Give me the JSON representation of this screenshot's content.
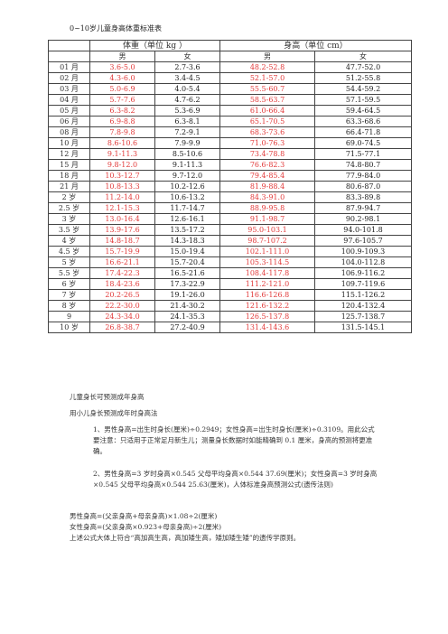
{
  "title": "0~10岁儿童身高体重标准表",
  "table": {
    "group_weight": "体重（单位 kg ）",
    "group_height": "身高（单位 cm）",
    "boy": "男",
    "girl": "女",
    "rows": [
      {
        "age": "01 月",
        "wb": "3.6-5.0",
        "wg": "2.7-3.6",
        "hb": "48.2-52.8",
        "hg": "47.7-52.0"
      },
      {
        "age": "02 月",
        "wb": "4.3-6.0",
        "wg": "3.4-4.5",
        "hb": "52.1-57.0",
        "hg": "51.2-55.8"
      },
      {
        "age": "03 月",
        "wb": "5.0-6.9",
        "wg": "4.0-5.4",
        "hb": "55.5-60.7",
        "hg": "54.4-59.2"
      },
      {
        "age": "04 月",
        "wb": "5.7-7.6",
        "wg": "4.7-6.2",
        "hb": "58.5-63.7",
        "hg": "57.1-59.5"
      },
      {
        "age": "05 月",
        "wb": "6.3-8.2",
        "wg": "5.3-6.9",
        "hb": "61.0-66.4",
        "hg": "59.4-64.5"
      },
      {
        "age": "06 月",
        "wb": "6.9-8.8",
        "wg": "6.3-8.1",
        "hb": "65.1-70.5",
        "hg": "63.3-68.6"
      },
      {
        "age": "08 月",
        "wb": "7.8-9.8",
        "wg": "7.2-9.1",
        "hb": "68.3-73.6",
        "hg": "66.4-71.8"
      },
      {
        "age": "10 月",
        "wb": "8.6-10.6",
        "wg": "7.9-9.9",
        "hb": "71.0-76.3",
        "hg": "69.0-74.5"
      },
      {
        "age": "12 月",
        "wb": "9.1-11.3",
        "wg": "8.5-10.6",
        "hb": "73.4-78.8",
        "hg": "71.5-77.1"
      },
      {
        "age": "15 月",
        "wb": "9.8-12.0",
        "wg": "9.1-11.3",
        "hb": "76.6-82.3",
        "hg": "74.8-80.7"
      },
      {
        "age": "18 月",
        "wb": "10.3-12.7",
        "wg": "9.7-12.0",
        "hb": "79.4-85.4",
        "hg": "77.9-84.0"
      },
      {
        "age": "21 月",
        "wb": "10.8-13.3",
        "wg": "10.2-12.6",
        "hb": "81.9-88.4",
        "hg": "80.6-87.0"
      },
      {
        "age": "2 岁",
        "wb": "11.2-14.0",
        "wg": "10.6-13.2",
        "hb": "84.3-91.0",
        "hg": "83.3-89.8"
      },
      {
        "age": "2.5 岁",
        "wb": "12.1-15.3",
        "wg": "11.7-14.7",
        "hb": "88.9-95.8",
        "hg": "87.9-94.7"
      },
      {
        "age": "3 岁",
        "wb": "13.0-16.4",
        "wg": "12.6-16.1",
        "hb": "91.1-98.7",
        "hg": "90.2-98.1"
      },
      {
        "age": "3.5 岁",
        "wb": "13.9-17.6",
        "wg": "13.5-17.2",
        "hb": "95.0-103.1",
        "hg": "94.0-101.8"
      },
      {
        "age": "4 岁",
        "wb": "14.8-18.7",
        "wg": "14.3-18.3",
        "hb": "98.7-107.2",
        "hg": "97.6-105.7"
      },
      {
        "age": "4.5 岁",
        "wb": "15.7-19.9",
        "wg": "15.0-19.4",
        "hb": "102.1-111.0",
        "hg": "100.9-109.3"
      },
      {
        "age": "5 岁",
        "wb": "16.6-21.1",
        "wg": "15.7-20.4",
        "hb": "105.3-114.5",
        "hg": "104.0-112.8"
      },
      {
        "age": "5.5 岁",
        "wb": "17.4-22.3",
        "wg": "16.5-21.6",
        "hb": "108.4-117.8",
        "hg": "106.9-116.2"
      },
      {
        "age": "6 岁",
        "wb": "18.4-23.6",
        "wg": "17.3-22.9",
        "hb": "111.2-121.0",
        "hg": "109.7-119.6"
      },
      {
        "age": "7 岁",
        "wb": "20.2-26.5",
        "wg": "19.1-26.0",
        "hb": "116.6-126.8",
        "hg": "115.1-126.2"
      },
      {
        "age": "8 岁",
        "wb": "22.2-30.0",
        "wg": "21.4-30.2",
        "hb": "121.6-132.2",
        "hg": "120.4-132.4"
      },
      {
        "age": "9",
        "wb": "24.3-34.0",
        "wg": "24.1-35.3",
        "hb": "126.5-137.8",
        "hg": "125.7-138.7"
      },
      {
        "age": "10 岁",
        "wb": "26.8-38.7",
        "wg": "27.2-40.9",
        "hb": "131.4-143.6",
        "hg": "131.5-145.1"
      }
    ]
  },
  "section_title": "儿童身长可预测成年身高",
  "paragraphs": [
    "用小儿身长预测成年时身高法",
    "1、男性身高=出生时身长(厘米)÷0.2949；女性身高=出生时身长(厘米)÷0.3109。用此公式要注意：只适用于正常足月新生儿；测量身长数据时如能精确到 0.1 厘米，身高的预测将更准确。",
    "2、男性身高=3 岁时身高×0.545 父母平均身高×0.544 37.69(厘米)；女性身高=3 岁时身高×0.545 父母平均身高×0.544 25.63(厘米)，人体标准身高预测公式(遗传法则)",
    "男性身高=(父亲身高+母亲身高)×1.08÷2(厘米)",
    "女性身高=(父亲身高×0.923+母亲身高)÷2(厘米)",
    "上述公式大体上符合“高加高生高，高加矮生高，矮加矮生矮”的遗传学原则。"
  ]
}
